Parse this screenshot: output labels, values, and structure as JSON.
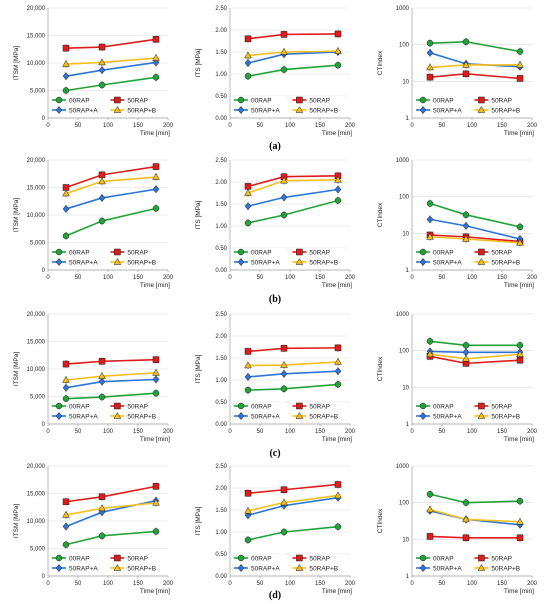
{
  "figure": {
    "row_labels": [
      "(a)",
      "(b)",
      "(c)",
      "(d)"
    ],
    "colors": {
      "00RAP": "#22a33a",
      "50RAP": "#e01b1b",
      "50RAP+A": "#2e75d6",
      "50RAP+B": "#f5bf1b"
    }
  },
  "chart_data": [
    {
      "type": "line",
      "row": "(a)",
      "ylabel": "ITSM [MPa]",
      "xlabel": "Time [min]",
      "x": [
        30,
        90,
        180
      ],
      "xlim": [
        0,
        200
      ],
      "xticks": [
        0,
        50,
        100,
        150,
        200
      ],
      "ylim": [
        0,
        20000
      ],
      "yticks": [
        0,
        5000,
        10000,
        15000,
        20000
      ],
      "ytick_labels": [
        "0",
        "5,000",
        "10,000",
        "15,000",
        "20,000"
      ],
      "log": false,
      "grid": true,
      "legend": "bottom",
      "series": [
        {
          "name": "00RAP",
          "values": [
            5000,
            6000,
            7400
          ]
        },
        {
          "name": "50RAP",
          "values": [
            12700,
            12900,
            14300
          ]
        },
        {
          "name": "50RAP+A",
          "values": [
            7600,
            8700,
            10100
          ]
        },
        {
          "name": "50RAP+B",
          "values": [
            9800,
            10100,
            10900
          ]
        }
      ]
    },
    {
      "type": "line",
      "row": "(a)",
      "ylabel": "ITS [MPa]",
      "xlabel": "Time [min]",
      "x": [
        30,
        90,
        180
      ],
      "xlim": [
        0,
        200
      ],
      "xticks": [
        0,
        50,
        100,
        150,
        200
      ],
      "ylim": [
        0,
        2.5
      ],
      "yticks": [
        0,
        0.5,
        1,
        1.5,
        2,
        2.5
      ],
      "ytick_labels": [
        "0.00",
        "0.50",
        "1.00",
        "1.50",
        "2.00",
        "2.50"
      ],
      "log": false,
      "grid": true,
      "legend": "bottom",
      "series": [
        {
          "name": "00RAP",
          "values": [
            0.95,
            1.1,
            1.2
          ]
        },
        {
          "name": "50RAP",
          "values": [
            1.8,
            1.9,
            1.91
          ]
        },
        {
          "name": "50RAP+A",
          "values": [
            1.25,
            1.45,
            1.5
          ]
        },
        {
          "name": "50RAP+B",
          "values": [
            1.42,
            1.5,
            1.52
          ]
        }
      ]
    },
    {
      "type": "line",
      "row": "(a)",
      "ylabel": "CTIndex",
      "xlabel": "Time [min]",
      "x": [
        30,
        90,
        180
      ],
      "xlim": [
        0,
        200
      ],
      "xticks": [
        0,
        50,
        100,
        150,
        200
      ],
      "ylim": [
        1,
        1000
      ],
      "yticks": [
        1,
        10,
        100,
        1000
      ],
      "ytick_labels": [
        "1",
        "10",
        "100",
        "1000"
      ],
      "log": true,
      "grid": true,
      "legend": "bottom",
      "series": [
        {
          "name": "00RAP",
          "values": [
            110,
            120,
            65
          ]
        },
        {
          "name": "50RAP",
          "values": [
            13,
            16,
            12
          ]
        },
        {
          "name": "50RAP+A",
          "values": [
            60,
            30,
            25
          ]
        },
        {
          "name": "50RAP+B",
          "values": [
            24,
            28,
            28
          ]
        }
      ]
    },
    {
      "type": "line",
      "row": "(b)",
      "ylabel": "ITSM [MPa]",
      "xlabel": "Time [min]",
      "x": [
        30,
        90,
        180
      ],
      "xlim": [
        0,
        200
      ],
      "xticks": [
        0,
        50,
        100,
        150,
        200
      ],
      "ylim": [
        0,
        20000
      ],
      "yticks": [
        0,
        5000,
        10000,
        15000,
        20000
      ],
      "ytick_labels": [
        "0",
        "5,000",
        "10,000",
        "15,000",
        "20,000"
      ],
      "log": false,
      "grid": true,
      "legend": "bottom",
      "series": [
        {
          "name": "00RAP",
          "values": [
            6200,
            8900,
            11200
          ]
        },
        {
          "name": "50RAP",
          "values": [
            15000,
            17300,
            18800
          ]
        },
        {
          "name": "50RAP+A",
          "values": [
            11100,
            13100,
            14700
          ]
        },
        {
          "name": "50RAP+B",
          "values": [
            13900,
            16100,
            16900
          ]
        }
      ]
    },
    {
      "type": "line",
      "row": "(b)",
      "ylabel": "ITS [MPa]",
      "xlabel": "Time [min]",
      "x": [
        30,
        90,
        180
      ],
      "xlim": [
        0,
        200
      ],
      "xticks": [
        0,
        50,
        100,
        150,
        200
      ],
      "ylim": [
        0,
        2.5
      ],
      "yticks": [
        0,
        0.5,
        1,
        1.5,
        2,
        2.5
      ],
      "ytick_labels": [
        "0.00",
        "0.50",
        "1.00",
        "1.50",
        "2.00",
        "2.50"
      ],
      "log": false,
      "grid": true,
      "legend": "bottom",
      "series": [
        {
          "name": "00RAP",
          "values": [
            1.07,
            1.25,
            1.58
          ]
        },
        {
          "name": "50RAP",
          "values": [
            1.9,
            2.12,
            2.14
          ]
        },
        {
          "name": "50RAP+A",
          "values": [
            1.45,
            1.65,
            1.83
          ]
        },
        {
          "name": "50RAP+B",
          "values": [
            1.75,
            2.03,
            2.05
          ]
        }
      ]
    },
    {
      "type": "line",
      "row": "(b)",
      "ylabel": "CTIndex",
      "xlabel": "Time [min]",
      "x": [
        30,
        90,
        180
      ],
      "xlim": [
        0,
        200
      ],
      "xticks": [
        0,
        50,
        100,
        150,
        200
      ],
      "ylim": [
        1,
        1000
      ],
      "yticks": [
        1,
        10,
        100,
        1000
      ],
      "ytick_labels": [
        "1",
        "10",
        "100",
        "1000"
      ],
      "log": true,
      "grid": true,
      "legend": "bottom",
      "series": [
        {
          "name": "00RAP",
          "values": [
            65,
            32,
            15
          ]
        },
        {
          "name": "50RAP",
          "values": [
            9,
            8,
            6
          ]
        },
        {
          "name": "50RAP+A",
          "values": [
            24,
            16,
            7
          ]
        },
        {
          "name": "50RAP+B",
          "values": [
            8,
            7,
            5.5
          ]
        }
      ]
    },
    {
      "type": "line",
      "row": "(c)",
      "ylabel": "ITSM [MPa]",
      "xlabel": "Time [min]",
      "x": [
        30,
        90,
        180
      ],
      "xlim": [
        0,
        200
      ],
      "xticks": [
        0,
        50,
        100,
        150,
        200
      ],
      "ylim": [
        0,
        20000
      ],
      "yticks": [
        0,
        5000,
        10000,
        15000,
        20000
      ],
      "ytick_labels": [
        "0",
        "5,000",
        "10,000",
        "15,000",
        "20,000"
      ],
      "log": false,
      "grid": true,
      "legend": "bottom",
      "series": [
        {
          "name": "00RAP",
          "values": [
            4600,
            4900,
            5600
          ]
        },
        {
          "name": "50RAP",
          "values": [
            10900,
            11400,
            11700
          ]
        },
        {
          "name": "50RAP+A",
          "values": [
            6600,
            7700,
            8100
          ]
        },
        {
          "name": "50RAP+B",
          "values": [
            8000,
            8700,
            9300
          ]
        }
      ]
    },
    {
      "type": "line",
      "row": "(c)",
      "ylabel": "ITS [MPa]",
      "xlabel": "Time [min]",
      "x": [
        30,
        90,
        180
      ],
      "xlim": [
        0,
        200
      ],
      "xticks": [
        0,
        50,
        100,
        150,
        200
      ],
      "ylim": [
        0,
        2.5
      ],
      "yticks": [
        0,
        0.5,
        1,
        1.5,
        2,
        2.5
      ],
      "ytick_labels": [
        "0.00",
        "0.50",
        "1.00",
        "1.50",
        "2.00",
        "2.50"
      ],
      "log": false,
      "grid": true,
      "legend": "bottom",
      "series": [
        {
          "name": "00RAP",
          "values": [
            0.77,
            0.8,
            0.9
          ]
        },
        {
          "name": "50RAP",
          "values": [
            1.65,
            1.72,
            1.73
          ]
        },
        {
          "name": "50RAP+A",
          "values": [
            1.07,
            1.14,
            1.2
          ]
        },
        {
          "name": "50RAP+B",
          "values": [
            1.33,
            1.34,
            1.41
          ]
        }
      ]
    },
    {
      "type": "line",
      "row": "(c)",
      "ylabel": "CTIndex",
      "xlabel": "Time [min]",
      "x": [
        30,
        90,
        180
      ],
      "xlim": [
        0,
        200
      ],
      "xticks": [
        0,
        50,
        100,
        150,
        200
      ],
      "ylim": [
        1,
        1000
      ],
      "yticks": [
        1,
        10,
        100,
        1000
      ],
      "ytick_labels": [
        "1",
        "10",
        "100",
        "1000"
      ],
      "log": true,
      "grid": true,
      "legend": "bottom",
      "series": [
        {
          "name": "00RAP",
          "values": [
            180,
            140,
            140
          ]
        },
        {
          "name": "50RAP",
          "values": [
            70,
            45,
            55
          ]
        },
        {
          "name": "50RAP+A",
          "values": [
            95,
            90,
            90
          ]
        },
        {
          "name": "50RAP+B",
          "values": [
            80,
            60,
            80
          ]
        }
      ]
    },
    {
      "type": "line",
      "row": "(d)",
      "ylabel": "ITSM [MPa]",
      "xlabel": "Time [min]",
      "x": [
        30,
        90,
        180
      ],
      "xlim": [
        0,
        200
      ],
      "xticks": [
        0,
        50,
        100,
        150,
        200
      ],
      "ylim": [
        0,
        20000
      ],
      "yticks": [
        0,
        5000,
        10000,
        15000,
        20000
      ],
      "ytick_labels": [
        "0",
        "5,000",
        "10,000",
        "15,000",
        "20,000"
      ],
      "log": false,
      "grid": true,
      "legend": "bottom",
      "series": [
        {
          "name": "00RAP",
          "values": [
            5700,
            7300,
            8100
          ]
        },
        {
          "name": "50RAP",
          "values": [
            13500,
            14400,
            16300
          ]
        },
        {
          "name": "50RAP+A",
          "values": [
            9000,
            11600,
            13700
          ]
        },
        {
          "name": "50RAP+B",
          "values": [
            11100,
            12300,
            13300
          ]
        }
      ]
    },
    {
      "type": "line",
      "row": "(d)",
      "ylabel": "ITS [MPa]",
      "xlabel": "Time [min]",
      "x": [
        30,
        90,
        180
      ],
      "xlim": [
        0,
        200
      ],
      "xticks": [
        0,
        50,
        100,
        150,
        200
      ],
      "ylim": [
        0,
        2.5
      ],
      "yticks": [
        0,
        0.5,
        1,
        1.5,
        2,
        2.5
      ],
      "ytick_labels": [
        "0.00",
        "0.50",
        "1.00",
        "1.50",
        "2.00",
        "2.50"
      ],
      "log": false,
      "grid": true,
      "legend": "bottom",
      "series": [
        {
          "name": "00RAP",
          "values": [
            0.82,
            1.0,
            1.12
          ]
        },
        {
          "name": "50RAP",
          "values": [
            1.88,
            1.96,
            2.08
          ]
        },
        {
          "name": "50RAP+A",
          "values": [
            1.38,
            1.6,
            1.78
          ]
        },
        {
          "name": "50RAP+B",
          "values": [
            1.48,
            1.67,
            1.83
          ]
        }
      ]
    },
    {
      "type": "line",
      "row": "(d)",
      "ylabel": "CTIndex",
      "xlabel": "Time [min]",
      "x": [
        30,
        90,
        180
      ],
      "xlim": [
        0,
        200
      ],
      "xticks": [
        0,
        50,
        100,
        150,
        200
      ],
      "ylim": [
        1,
        1000
      ],
      "yticks": [
        1,
        10,
        100,
        1000
      ],
      "ytick_labels": [
        "1",
        "10",
        "100",
        "1000"
      ],
      "log": true,
      "grid": true,
      "legend": "bottom",
      "series": [
        {
          "name": "00RAP",
          "values": [
            170,
            100,
            110
          ]
        },
        {
          "name": "50RAP",
          "values": [
            12,
            11,
            11
          ]
        },
        {
          "name": "50RAP+A",
          "values": [
            60,
            35,
            25
          ]
        },
        {
          "name": "50RAP+B",
          "values": [
            65,
            35,
            30
          ]
        }
      ]
    }
  ]
}
